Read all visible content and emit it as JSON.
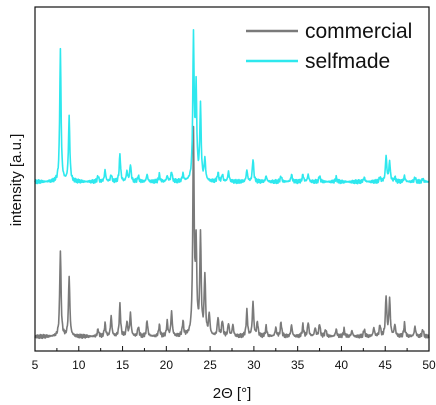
{
  "chart_data": {
    "type": "line",
    "xlabel": "2Θ [°]",
    "ylabel": "intensity [a.u.]",
    "xlim": [
      5,
      50
    ],
    "x_ticks": [
      5,
      10,
      15,
      20,
      25,
      30,
      35,
      40,
      45,
      50
    ],
    "y_ticks_labeled": false,
    "grid": false,
    "legend_position": "top-right",
    "series": [
      {
        "name": "commercial",
        "color": "#7a7a7a",
        "baseline": 0,
        "peaks": [
          [
            7.9,
            0.6
          ],
          [
            8.9,
            0.42
          ],
          [
            12.2,
            0.05
          ],
          [
            13.0,
            0.09
          ],
          [
            13.7,
            0.14
          ],
          [
            14.7,
            0.22
          ],
          [
            15.5,
            0.1
          ],
          [
            15.9,
            0.16
          ],
          [
            16.8,
            0.07
          ],
          [
            17.8,
            0.11
          ],
          [
            19.2,
            0.08
          ],
          [
            20.1,
            0.1
          ],
          [
            20.6,
            0.17
          ],
          [
            21.9,
            0.1
          ],
          [
            23.1,
            1.4
          ],
          [
            23.4,
            0.6
          ],
          [
            23.9,
            0.7
          ],
          [
            24.4,
            0.42
          ],
          [
            24.9,
            0.15
          ],
          [
            25.9,
            0.13
          ],
          [
            26.4,
            0.11
          ],
          [
            27.1,
            0.09
          ],
          [
            27.6,
            0.08
          ],
          [
            29.2,
            0.18
          ],
          [
            29.9,
            0.24
          ],
          [
            30.4,
            0.1
          ],
          [
            31.4,
            0.07
          ],
          [
            32.5,
            0.06
          ],
          [
            33.1,
            0.1
          ],
          [
            34.3,
            0.08
          ],
          [
            35.6,
            0.08
          ],
          [
            36.2,
            0.1
          ],
          [
            37.0,
            0.06
          ],
          [
            37.5,
            0.09
          ],
          [
            38.2,
            0.05
          ],
          [
            39.4,
            0.05
          ],
          [
            40.3,
            0.05
          ],
          [
            41.2,
            0.04
          ],
          [
            42.6,
            0.05
          ],
          [
            43.7,
            0.06
          ],
          [
            44.4,
            0.08
          ],
          [
            45.1,
            0.28
          ],
          [
            45.5,
            0.26
          ],
          [
            46.1,
            0.08
          ],
          [
            47.2,
            0.09
          ],
          [
            48.4,
            0.07
          ],
          [
            49.3,
            0.05
          ]
        ]
      },
      {
        "name": "selfmade",
        "color": "#2ee8ee",
        "baseline": 1.08,
        "peaks": [
          [
            7.9,
            0.92
          ],
          [
            8.9,
            0.45
          ],
          [
            12.2,
            0.04
          ],
          [
            13.0,
            0.08
          ],
          [
            13.7,
            0.05
          ],
          [
            14.7,
            0.19
          ],
          [
            15.5,
            0.07
          ],
          [
            15.9,
            0.12
          ],
          [
            16.8,
            0.04
          ],
          [
            17.8,
            0.05
          ],
          [
            19.2,
            0.05
          ],
          [
            20.1,
            0.04
          ],
          [
            20.6,
            0.07
          ],
          [
            21.9,
            0.05
          ],
          [
            23.1,
            1.0
          ],
          [
            23.4,
            0.62
          ],
          [
            23.9,
            0.52
          ],
          [
            24.4,
            0.15
          ],
          [
            25.9,
            0.06
          ],
          [
            26.4,
            0.05
          ],
          [
            27.1,
            0.07
          ],
          [
            29.2,
            0.08
          ],
          [
            29.9,
            0.16
          ],
          [
            31.4,
            0.04
          ],
          [
            33.1,
            0.04
          ],
          [
            34.3,
            0.05
          ],
          [
            35.6,
            0.05
          ],
          [
            36.2,
            0.05
          ],
          [
            37.5,
            0.04
          ],
          [
            39.4,
            0.03
          ],
          [
            42.6,
            0.03
          ],
          [
            44.4,
            0.03
          ],
          [
            45.1,
            0.18
          ],
          [
            45.5,
            0.14
          ],
          [
            46.1,
            0.03
          ],
          [
            47.2,
            0.04
          ],
          [
            48.4,
            0.03
          ],
          [
            49.3,
            0.02
          ]
        ]
      }
    ],
    "ylim": [
      -0.1,
      2.3
    ]
  }
}
